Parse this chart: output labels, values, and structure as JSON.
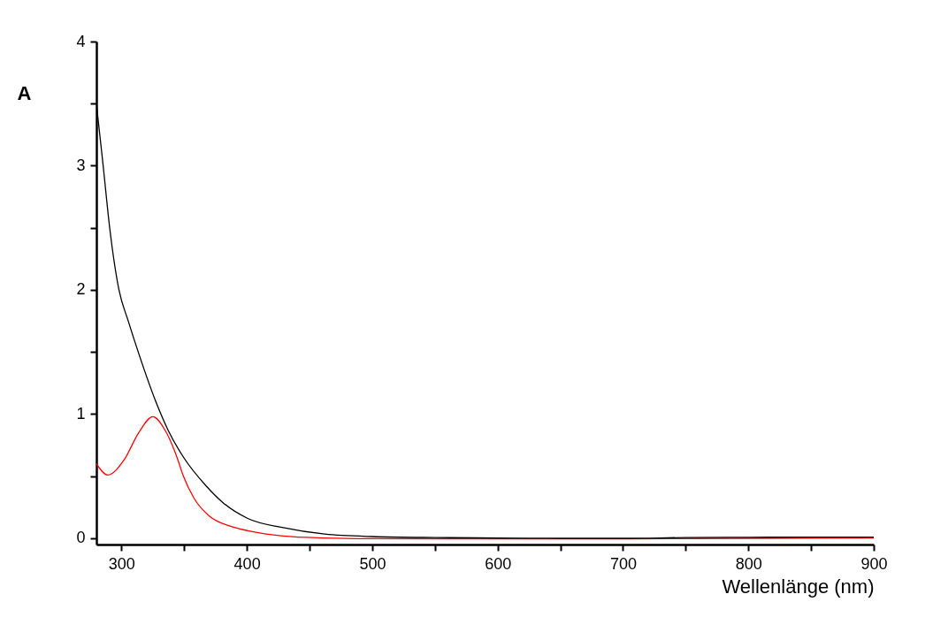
{
  "chart_data": {
    "type": "line",
    "xlabel": "Wellenlänge (nm)",
    "ylabel": "A",
    "xlim": [
      280,
      900
    ],
    "xticks": [
      300,
      {
        "value": 350,
        "label": null
      },
      400,
      {
        "value": 450,
        "label": null
      },
      500,
      {
        "value": 550,
        "label": null
      },
      600,
      {
        "value": 650,
        "label": null
      },
      700,
      {
        "value": 750,
        "label": null
      },
      800,
      {
        "value": 850,
        "label": null
      },
      900
    ],
    "ylim": [
      -0.05,
      4
    ],
    "yticks": [
      0,
      {
        "value": 0.5,
        "label": null
      },
      1,
      {
        "value": 1.5,
        "label": null
      },
      2,
      {
        "value": 2.5,
        "label": null
      },
      3,
      {
        "value": 3.5,
        "label": null
      },
      4
    ],
    "grid": false,
    "legend": false,
    "marker": "none",
    "line_style": "solid",
    "series": [
      {
        "color": "#000000",
        "x": [
          280,
          285.4,
          290.6,
          298,
          305.4,
          313.7,
          327.8,
          337.2,
          349,
          367.7,
          381.8,
          400.7,
          429,
          462,
          500,
          550,
          600,
          650,
          700,
          750,
          800,
          850,
          900
        ],
        "values": [
          3.5,
          3.0,
          2.5,
          2.0,
          1.75,
          1.49,
          1.09,
          0.87,
          0.66,
          0.42,
          0.28,
          0.16,
          0.086,
          0.034,
          0.014,
          0.006,
          0.003,
          0.0,
          0.0,
          0.006,
          0.008,
          0.01,
          0.01
        ]
      },
      {
        "color": "#ff0000",
        "x": [
          280,
          289,
          302,
          313.7,
          325,
          334.8,
          344,
          349,
          358,
          370,
          386.6,
          400.7,
          429,
          462,
          500,
          600,
          700,
          800,
          900
        ],
        "values": [
          0.6,
          0.51,
          0.63,
          0.85,
          0.98,
          0.87,
          0.66,
          0.51,
          0.32,
          0.18,
          0.098,
          0.062,
          0.019,
          0.003,
          -0.003,
          -0.005,
          -0.004,
          0.0,
          0.002
        ]
      }
    ]
  }
}
